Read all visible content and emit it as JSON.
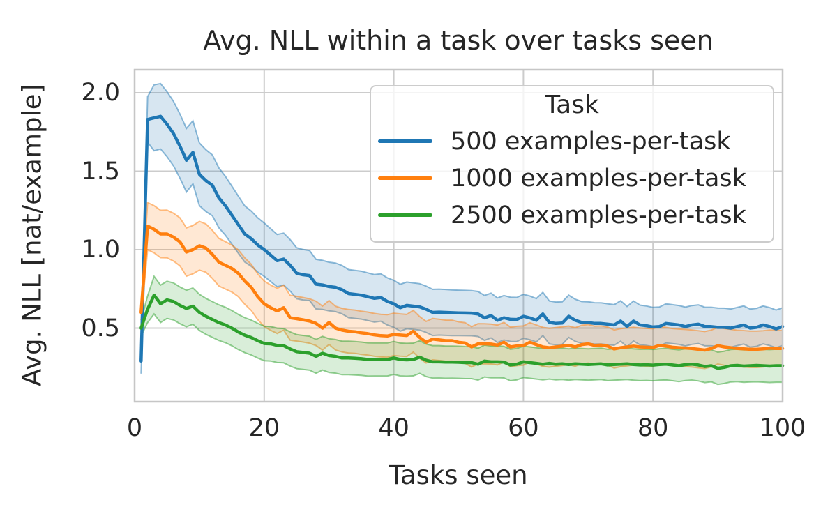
{
  "chart_data": {
    "type": "line",
    "title": "Avg. NLL within a task over tasks seen",
    "xlabel": "Tasks seen",
    "ylabel": "Avg. NLL [nat/example]",
    "grid": true,
    "xlim": [
      0,
      100
    ],
    "ylim": [
      0.02,
      2.14
    ],
    "x_ticks": [
      {
        "value": 0,
        "label": "0"
      },
      {
        "value": 20,
        "label": "20"
      },
      {
        "value": 40,
        "label": "40"
      },
      {
        "value": 60,
        "label": "60"
      },
      {
        "value": 80,
        "label": "80"
      },
      {
        "value": 100,
        "label": "100"
      }
    ],
    "y_ticks": [
      {
        "value": 0.5,
        "label": "0.5"
      },
      {
        "value": 1.0,
        "label": "1.0"
      },
      {
        "value": 1.5,
        "label": "1.5"
      },
      {
        "value": 2.0,
        "label": "2.0"
      }
    ],
    "legend": {
      "title": "Task",
      "position": "upper right"
    },
    "x": [
      1,
      2,
      3,
      4,
      5,
      6,
      7,
      8,
      9,
      10,
      11,
      12,
      13,
      14,
      15,
      16,
      17,
      18,
      19,
      20,
      21,
      22,
      23,
      24,
      25,
      26,
      27,
      28,
      29,
      30,
      31,
      32,
      33,
      34,
      35,
      36,
      37,
      38,
      39,
      40,
      41,
      42,
      43,
      44,
      45,
      46,
      47,
      48,
      49,
      50,
      51,
      52,
      53,
      54,
      55,
      56,
      57,
      58,
      59,
      60,
      61,
      62,
      63,
      64,
      65,
      66,
      67,
      68,
      69,
      70,
      71,
      72,
      73,
      74,
      75,
      76,
      77,
      78,
      79,
      80,
      81,
      82,
      83,
      84,
      85,
      86,
      87,
      88,
      89,
      90,
      91,
      92,
      93,
      94,
      95,
      96,
      97,
      98,
      99,
      100
    ],
    "series": [
      {
        "name": "500 examples-per-task",
        "color": "#1f77b4",
        "values": [
          0.29,
          1.83,
          1.84,
          1.85,
          1.8,
          1.74,
          1.66,
          1.57,
          1.62,
          1.48,
          1.44,
          1.41,
          1.33,
          1.28,
          1.22,
          1.16,
          1.1,
          1.07,
          1.03,
          1.0,
          0.965,
          0.93,
          0.94,
          0.9,
          0.85,
          0.84,
          0.835,
          0.78,
          0.775,
          0.765,
          0.76,
          0.745,
          0.72,
          0.715,
          0.71,
          0.7,
          0.69,
          0.695,
          0.67,
          0.655,
          0.63,
          0.645,
          0.64,
          0.635,
          0.62,
          0.6,
          0.602,
          0.6,
          0.598,
          0.597,
          0.596,
          0.595,
          0.59,
          0.565,
          0.58,
          0.55,
          0.566,
          0.556,
          0.555,
          0.575,
          0.565,
          0.55,
          0.59,
          0.536,
          0.53,
          0.532,
          0.575,
          0.55,
          0.536,
          0.535,
          0.53,
          0.53,
          0.525,
          0.52,
          0.545,
          0.51,
          0.545,
          0.52,
          0.515,
          0.507,
          0.51,
          0.53,
          0.525,
          0.52,
          0.51,
          0.52,
          0.525,
          0.51,
          0.51,
          0.505,
          0.505,
          0.5,
          0.51,
          0.52,
          0.5,
          0.505,
          0.52,
          0.51,
          0.495,
          0.51
        ],
        "band_halfwidth_anchors": [
          [
            1,
            0.08
          ],
          [
            3,
            0.21
          ],
          [
            10,
            0.2
          ],
          [
            20,
            0.17
          ],
          [
            30,
            0.155
          ],
          [
            40,
            0.15
          ],
          [
            50,
            0.145
          ],
          [
            60,
            0.14
          ],
          [
            80,
            0.125
          ],
          [
            100,
            0.12
          ]
        ]
      },
      {
        "name": "1000 examples-per-task",
        "color": "#ff7f0e",
        "values": [
          0.6,
          1.15,
          1.13,
          1.1,
          1.1,
          1.08,
          1.05,
          0.985,
          1.0,
          1.025,
          1.01,
          0.97,
          0.92,
          0.9,
          0.88,
          0.85,
          0.8,
          0.76,
          0.7,
          0.655,
          0.63,
          0.61,
          0.63,
          0.566,
          0.56,
          0.553,
          0.545,
          0.53,
          0.5,
          0.536,
          0.5,
          0.487,
          0.48,
          0.477,
          0.47,
          0.465,
          0.457,
          0.452,
          0.45,
          0.46,
          0.456,
          0.453,
          0.48,
          0.44,
          0.41,
          0.43,
          0.425,
          0.42,
          0.42,
          0.41,
          0.405,
          0.38,
          0.4,
          0.4,
          0.398,
          0.392,
          0.41,
          0.38,
          0.386,
          0.389,
          0.41,
          0.395,
          0.38,
          0.375,
          0.38,
          0.385,
          0.39,
          0.38,
          0.395,
          0.4,
          0.39,
          0.392,
          0.385,
          0.367,
          0.375,
          0.38,
          0.385,
          0.38,
          0.378,
          0.376,
          0.39,
          0.385,
          0.378,
          0.375,
          0.373,
          0.37,
          0.365,
          0.36,
          0.37,
          0.388,
          0.38,
          0.375,
          0.37,
          0.368,
          0.365,
          0.365,
          0.368,
          0.372,
          0.37,
          0.37
        ],
        "band_halfwidth_anchors": [
          [
            1,
            0.05
          ],
          [
            2,
            0.15
          ],
          [
            10,
            0.155
          ],
          [
            20,
            0.145
          ],
          [
            40,
            0.135
          ],
          [
            60,
            0.125
          ],
          [
            80,
            0.12
          ],
          [
            100,
            0.115
          ]
        ]
      },
      {
        "name": "2500 examples-per-task",
        "color": "#2ca02c",
        "values": [
          0.5,
          0.62,
          0.71,
          0.655,
          0.68,
          0.67,
          0.645,
          0.625,
          0.64,
          0.6,
          0.575,
          0.555,
          0.535,
          0.52,
          0.5,
          0.475,
          0.455,
          0.44,
          0.42,
          0.402,
          0.4,
          0.39,
          0.388,
          0.367,
          0.35,
          0.345,
          0.34,
          0.32,
          0.34,
          0.325,
          0.32,
          0.31,
          0.31,
          0.308,
          0.305,
          0.3,
          0.3,
          0.3,
          0.3,
          0.31,
          0.3,
          0.298,
          0.3,
          0.315,
          0.295,
          0.285,
          0.285,
          0.283,
          0.283,
          0.282,
          0.28,
          0.28,
          0.27,
          0.29,
          0.285,
          0.285,
          0.283,
          0.265,
          0.27,
          0.285,
          0.28,
          0.275,
          0.27,
          0.275,
          0.27,
          0.272,
          0.268,
          0.272,
          0.27,
          0.268,
          0.27,
          0.272,
          0.265,
          0.268,
          0.27,
          0.272,
          0.268,
          0.265,
          0.266,
          0.264,
          0.268,
          0.27,
          0.265,
          0.26,
          0.267,
          0.27,
          0.265,
          0.255,
          0.26,
          0.244,
          0.25,
          0.26,
          0.262,
          0.258,
          0.26,
          0.262,
          0.26,
          0.258,
          0.26,
          0.26
        ],
        "band_halfwidth_anchors": [
          [
            1,
            0.05
          ],
          [
            3,
            0.12
          ],
          [
            10,
            0.115
          ],
          [
            20,
            0.11
          ],
          [
            40,
            0.105
          ],
          [
            60,
            0.1
          ],
          [
            80,
            0.1
          ],
          [
            100,
            0.105
          ]
        ]
      }
    ],
    "style": {
      "grid_color": "#cccccc",
      "spine_color": "#c6c6c6",
      "text_color": "#262626",
      "band_fill_opacity": 0.18,
      "band_edge_opacity": 0.5,
      "background": "#ffffff"
    }
  }
}
